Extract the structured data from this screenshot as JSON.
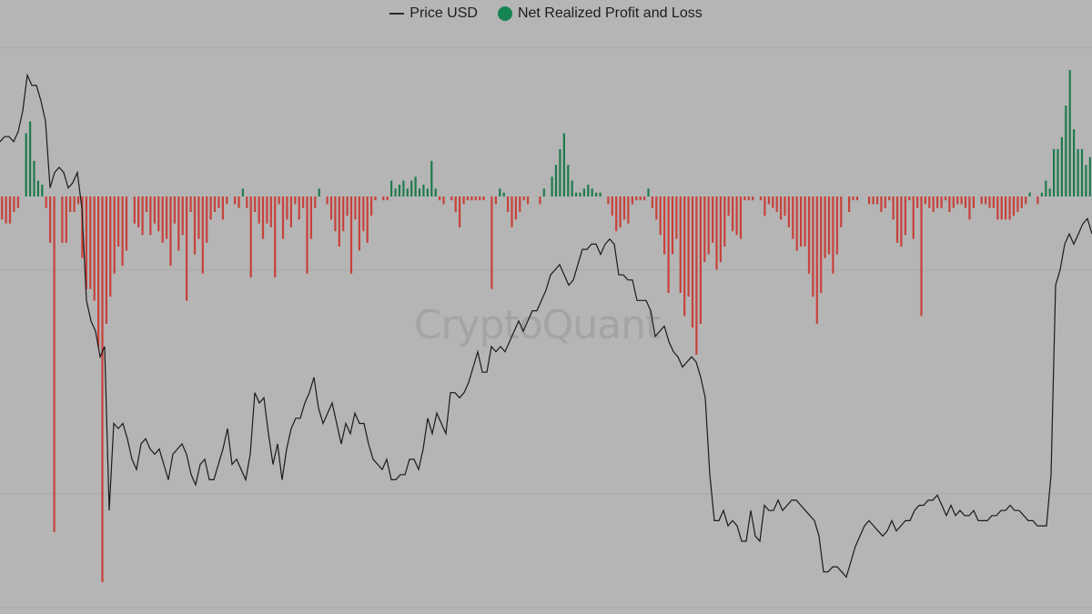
{
  "legend": {
    "price_label": "Price USD",
    "pnl_label": "Net Realized Profit and Loss"
  },
  "watermark": "CryptoQuant",
  "colors": {
    "background": "#b5b5b5",
    "price_line": "#1a1a1a",
    "profit": "#1e7a4c",
    "loss": "#c8413a",
    "legend_dot": "#178454",
    "gridline": "#a9a9a9"
  },
  "chart_data": {
    "type": "bar+line",
    "title": "",
    "xlabel": "",
    "ylabel": "",
    "grid": true,
    "legend_position": "top-center",
    "series": [
      {
        "name": "Price USD",
        "type": "line",
        "y_range": [
          0,
          100
        ],
        "values": [
          86,
          87,
          87,
          86,
          88,
          92,
          99,
          97,
          97,
          94,
          90,
          77,
          80,
          81,
          80,
          77,
          78,
          80,
          73,
          55,
          51,
          49,
          44,
          46,
          14,
          31,
          30,
          31,
          28,
          24,
          22,
          27,
          28,
          26,
          25,
          26,
          23,
          20,
          25,
          26,
          27,
          25,
          21,
          19,
          23,
          24,
          20,
          20,
          23,
          26,
          30,
          23,
          24,
          22,
          20,
          25,
          37,
          35,
          36,
          29,
          23,
          27,
          20,
          26,
          30,
          32,
          32,
          35,
          37,
          40,
          34,
          31,
          33,
          35,
          31,
          27,
          31,
          29,
          33,
          31,
          31,
          27,
          24,
          23,
          22,
          24,
          20,
          20,
          21,
          21,
          24,
          24,
          22,
          26,
          32,
          29,
          33,
          31,
          29,
          37,
          37,
          36,
          37,
          39,
          42,
          45,
          41,
          41,
          46,
          45,
          46,
          45,
          47,
          49,
          51,
          49,
          51,
          53,
          53,
          55,
          57,
          60,
          61,
          62,
          60,
          58,
          59,
          62,
          65,
          65,
          66,
          66,
          64,
          66,
          67,
          66,
          60,
          60,
          59,
          59,
          55,
          55,
          55,
          53,
          48,
          49,
          50,
          47,
          45,
          44,
          42,
          43,
          44,
          43,
          40,
          36,
          21,
          12,
          12,
          14,
          11,
          12,
          11,
          8,
          8,
          14,
          9,
          8,
          15,
          14,
          14,
          16,
          14,
          15,
          16,
          16,
          15,
          14,
          13,
          12,
          9,
          2,
          2,
          3,
          3,
          2,
          1,
          4,
          7,
          9,
          11,
          12,
          11,
          10,
          9,
          10,
          12,
          10,
          11,
          12,
          12,
          14,
          15,
          15,
          16,
          16,
          17,
          15,
          13,
          15,
          13,
          14,
          13,
          13,
          14,
          12,
          12,
          12,
          13,
          13,
          14,
          14,
          15,
          14,
          14,
          13,
          12,
          12,
          11,
          11,
          11,
          21,
          58,
          61,
          66,
          68,
          66,
          68,
          70,
          71,
          68
        ]
      },
      {
        "name": "Net Realized Profit and Loss",
        "type": "bar",
        "y_range": [
          -100,
          32
        ],
        "values": [
          -6,
          -7,
          -7,
          -4,
          -3,
          0,
          16,
          19,
          9,
          4,
          3,
          -3,
          -12,
          -87,
          0,
          -12,
          -12,
          -4,
          -4,
          -2,
          -16,
          -24,
          -24,
          -27,
          -39,
          -100,
          -33,
          -26,
          -20,
          -13,
          -18,
          -14,
          0,
          -7,
          -8,
          -10,
          -4,
          -10,
          -7,
          -9,
          -12,
          -11,
          -18,
          -7,
          -14,
          -10,
          -27,
          -4,
          -15,
          -11,
          -20,
          -12,
          -6,
          -4,
          -3,
          -6,
          -2,
          0,
          -2,
          -3,
          2,
          -3,
          -21,
          -4,
          -7,
          -11,
          -7,
          -8,
          -21,
          -2,
          -11,
          -6,
          -8,
          -2,
          -6,
          -3,
          -20,
          -11,
          -3,
          2,
          0,
          -2,
          -6,
          -9,
          -13,
          -9,
          -5,
          -20,
          -6,
          -14,
          -9,
          -12,
          -5,
          -1,
          0,
          -1,
          -1,
          4,
          2,
          3,
          4,
          2,
          4,
          5,
          2,
          3,
          2,
          9,
          2,
          -1,
          -2,
          0,
          -1,
          -4,
          -8,
          -2,
          -1,
          -1,
          -1,
          -1,
          -1,
          0,
          -24,
          -2,
          2,
          1,
          -4,
          -8,
          -6,
          -4,
          -1,
          -2,
          0,
          0,
          -2,
          2,
          0,
          5,
          8,
          12,
          16,
          8,
          4,
          1,
          1,
          2,
          3,
          2,
          1,
          1,
          0,
          -2,
          -5,
          -9,
          -8,
          -6,
          -7,
          -2,
          -1,
          -1,
          -1,
          2,
          -3,
          -6,
          -10,
          -15,
          -25,
          -15,
          -11,
          -25,
          -31,
          -26,
          -34,
          -41,
          -33,
          -17,
          -15,
          -12,
          -19,
          -17,
          -13,
          -5,
          -9,
          -10,
          -11,
          -1,
          -1,
          -1,
          0,
          -1,
          -5,
          -2,
          -3,
          -4,
          -6,
          -5,
          -8,
          -11,
          -14,
          -13,
          -13,
          -20,
          -26,
          -33,
          -25,
          -16,
          -15,
          -20,
          -15,
          -8,
          0,
          -4,
          -1,
          -1,
          0,
          0,
          -2,
          -2,
          -2,
          -4,
          -3,
          -1,
          -6,
          -12,
          -13,
          -10,
          -1,
          -11,
          -3,
          -31,
          -2,
          -3,
          -4,
          -3,
          -3,
          -1,
          -4,
          -3,
          -2,
          -2,
          -3,
          -6,
          -3,
          0,
          -2,
          -2,
          -3,
          -3,
          -6,
          -6,
          -6,
          -6,
          -5,
          -4,
          -3,
          -2,
          1,
          0,
          -2,
          1,
          4,
          2,
          12,
          12,
          15,
          23,
          32,
          17,
          12,
          12,
          8,
          10
        ]
      }
    ]
  }
}
